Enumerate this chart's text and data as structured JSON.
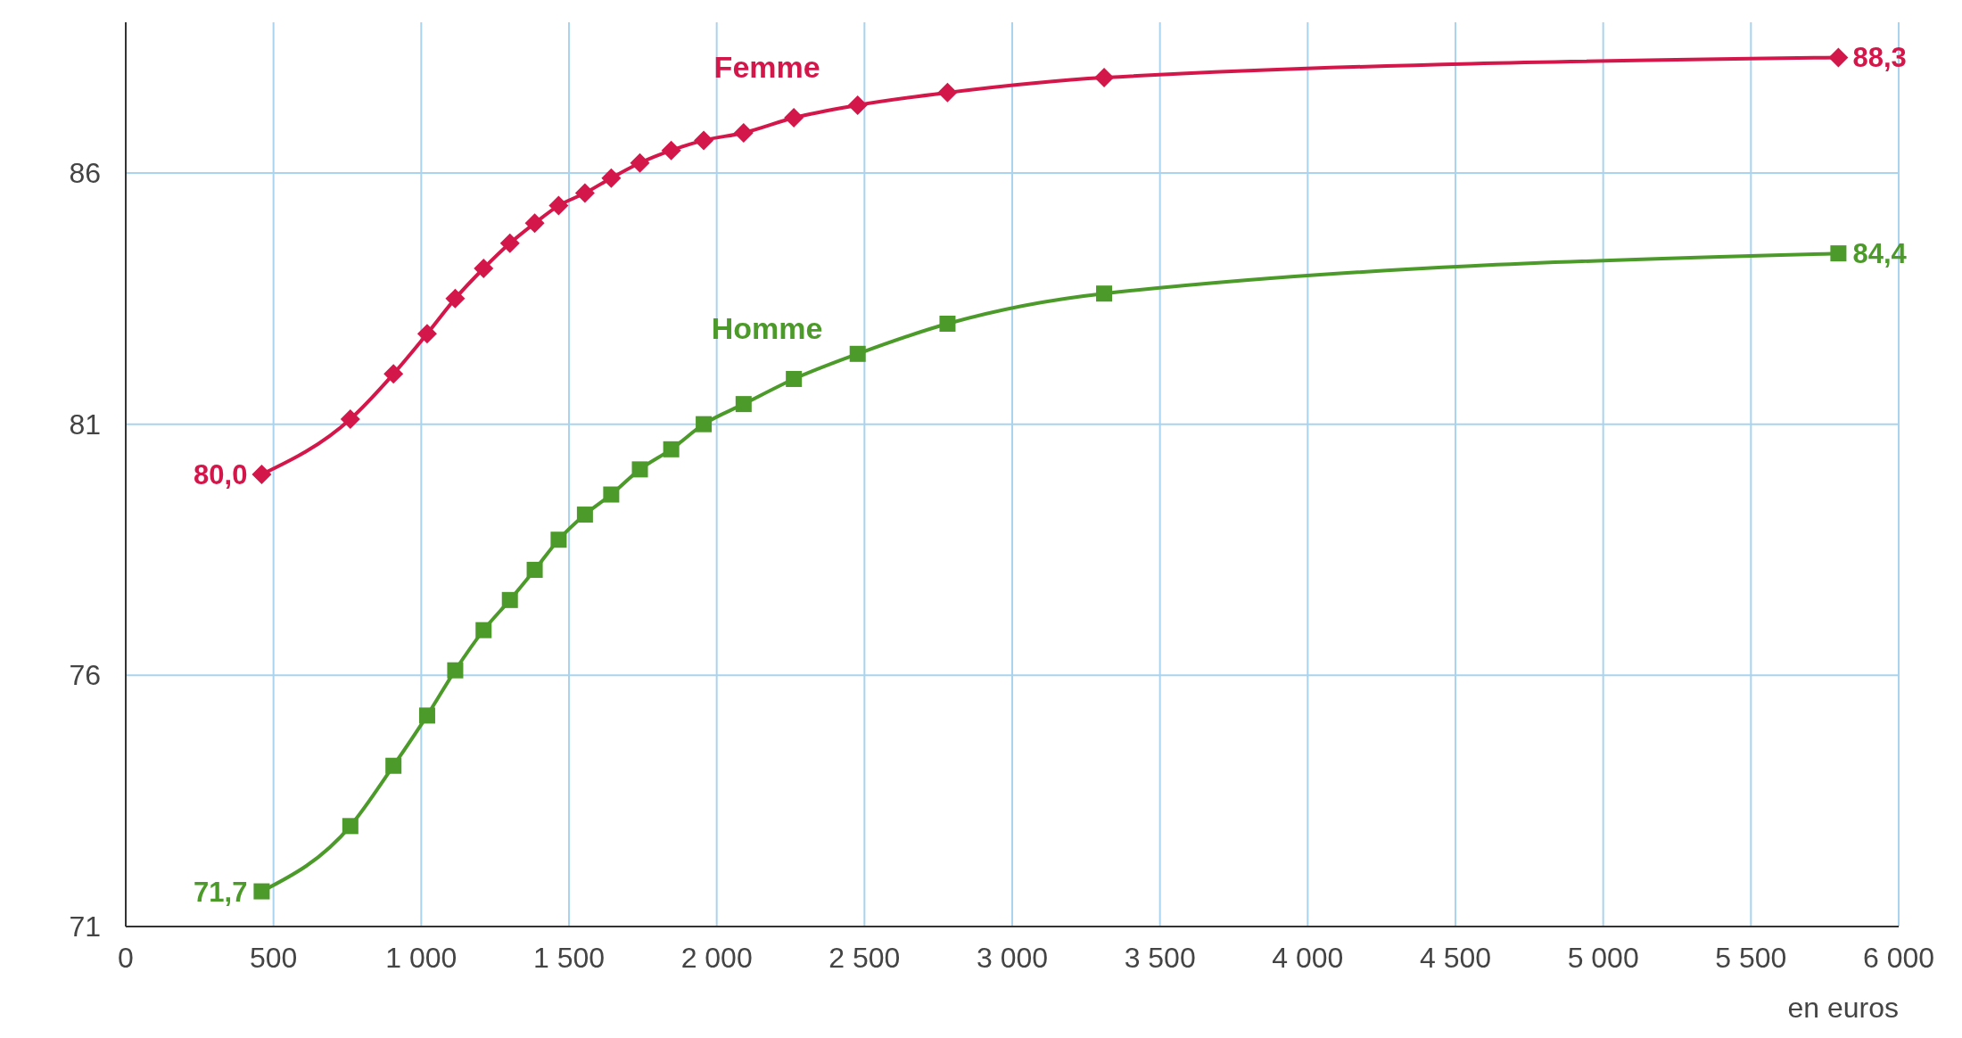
{
  "chart_data": {
    "type": "line",
    "xlabel": "en euros",
    "xlim": [
      0,
      6000
    ],
    "ylim": [
      71,
      89
    ],
    "xticks": [
      0,
      500,
      {
        "value": 1000,
        "label": "1 000"
      },
      {
        "value": 1500,
        "label": "1 500"
      },
      {
        "value": 2000,
        "label": "2 000"
      },
      {
        "value": 2500,
        "label": "2 500"
      },
      {
        "value": 3000,
        "label": "3 000"
      },
      {
        "value": 3500,
        "label": "3 500"
      },
      {
        "value": 4000,
        "label": "4 000"
      },
      {
        "value": 4500,
        "label": "4 500"
      },
      {
        "value": 5000,
        "label": "5 000"
      },
      {
        "value": 5500,
        "label": "5 500"
      },
      {
        "value": 6000,
        "label": "6 000"
      }
    ],
    "yticks": [
      71,
      76,
      81,
      86
    ],
    "grid": true,
    "x": [
      460,
      760,
      906,
      1020,
      1115,
      1211,
      1300,
      1384,
      1465,
      1554,
      1643,
      1740,
      1846,
      1956,
      2091,
      2261,
      2477,
      2781,
      3311,
      5796
    ],
    "series": [
      {
        "name": "Femme",
        "color": "#d4174a",
        "marker": "diamond",
        "values": [
          80.0,
          81.1,
          82.0,
          82.8,
          83.5,
          84.1,
          84.6,
          85.0,
          85.35,
          85.6,
          85.9,
          86.2,
          86.45,
          86.65,
          86.8,
          87.1,
          87.35,
          87.6,
          87.9,
          88.3
        ],
        "value_labels": [
          "80,0",
          null,
          null,
          null,
          null,
          null,
          null,
          null,
          null,
          null,
          null,
          null,
          null,
          null,
          null,
          null,
          null,
          null,
          null,
          "88,3"
        ]
      },
      {
        "name": "Homme",
        "color": "#4c9a2a",
        "marker": "square",
        "values": [
          71.7,
          73.0,
          74.2,
          75.2,
          76.1,
          76.9,
          77.5,
          78.1,
          78.7,
          79.2,
          79.6,
          80.1,
          80.5,
          81.0,
          81.4,
          81.9,
          82.4,
          83.0,
          83.6,
          84.4
        ],
        "value_labels": [
          "71,7",
          null,
          null,
          null,
          null,
          null,
          null,
          null,
          null,
          null,
          null,
          null,
          null,
          null,
          null,
          null,
          null,
          null,
          null,
          "84,4"
        ]
      }
    ]
  }
}
